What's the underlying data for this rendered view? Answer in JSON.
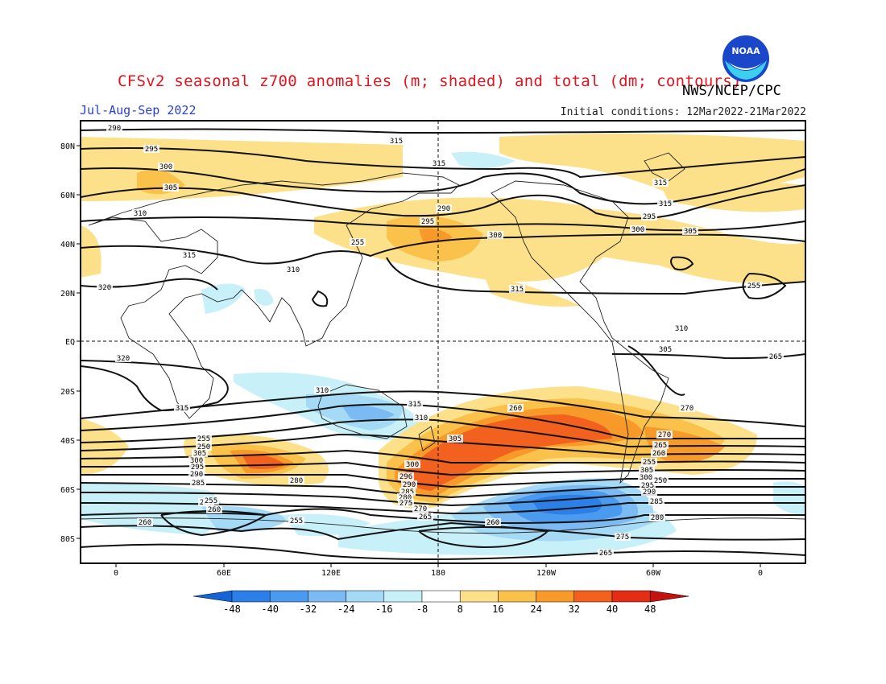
{
  "header": {
    "title": "CFSv2 seasonal z700 anomalies (m; shaded) and total (dm; contours)",
    "period": "Jul-Aug-Sep 2022",
    "initial_conditions": "Initial conditions: 12Mar2022-21Mar2022",
    "credit": "NWS/NCEP/CPC",
    "logo_text": "NOAA"
  },
  "map": {
    "lat_labels": [
      "80N",
      "60N",
      "40N",
      "20N",
      "EQ",
      "20S",
      "40S",
      "60S",
      "80S"
    ],
    "lon_labels": [
      "0",
      "60E",
      "120E",
      "180",
      "120W",
      "60W",
      "0"
    ],
    "contour_labels": [
      "290",
      "295",
      "300",
      "305",
      "310",
      "315",
      "320",
      "310",
      "315",
      "320",
      "315",
      "315",
      "315",
      "290",
      "295",
      "300",
      "305",
      "310",
      "315",
      "315",
      "295",
      "300",
      "305",
      "310",
      "315",
      "310",
      "305",
      "300",
      "296",
      "290",
      "285",
      "280",
      "275",
      "270",
      "265",
      "260",
      "255",
      "250",
      "305",
      "300",
      "295",
      "290",
      "285",
      "280",
      "275",
      "270",
      "265",
      "260",
      "255",
      "305",
      "300",
      "295",
      "290",
      "285",
      "280",
      "275",
      "270",
      "265",
      "260",
      "255",
      "260",
      "265",
      "255",
      "255",
      "260",
      "250",
      "255"
    ]
  },
  "colorbar": {
    "labels": [
      "-48",
      "-40",
      "-32",
      "-24",
      "-16",
      "-8",
      "8",
      "16",
      "24",
      "32",
      "40",
      "48"
    ],
    "colors": [
      "#1564d6",
      "#2d7fe8",
      "#4a9bf0",
      "#7cbaf4",
      "#a5daf6",
      "#c8f0f8",
      "#ffffff",
      "#fde18a",
      "#fbc24b",
      "#f89a2a",
      "#f2611e",
      "#e32d14",
      "#c5120f"
    ]
  }
}
